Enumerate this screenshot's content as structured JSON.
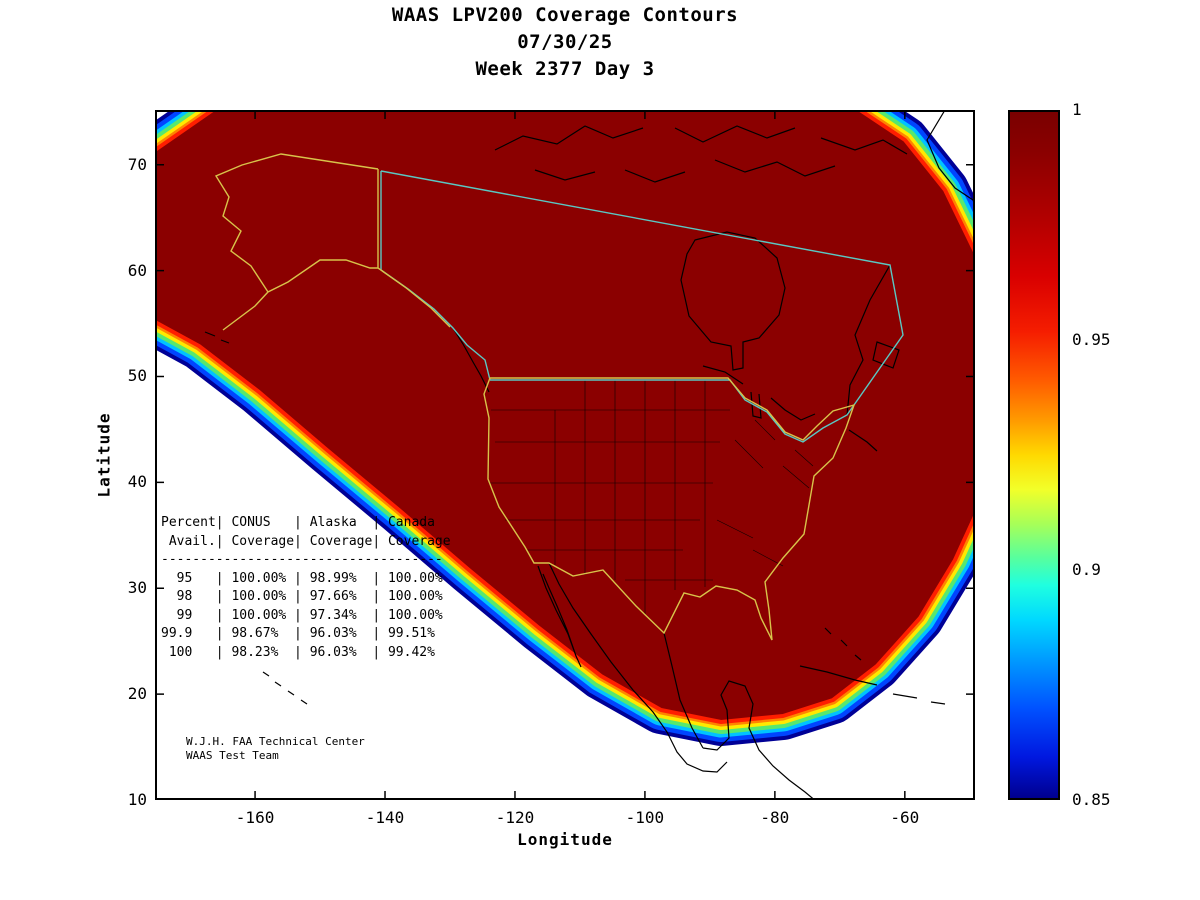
{
  "credit": {
    "line1": "W.J.H. FAA Technical Center",
    "line2": "WAAS Test Team"
  },
  "chart_data": {
    "type": "heatmap",
    "variant": "filled-contour-coverage-map",
    "title": "WAAS LPV200 Coverage Contours",
    "date": "07/30/25",
    "week_label": "Week 2377 Day 3",
    "xlabel": "Longitude",
    "ylabel": "Latitude",
    "xlim": [
      -175,
      -49
    ],
    "ylim": [
      10,
      75
    ],
    "x_ticks": [
      -160,
      -140,
      -120,
      -100,
      -80,
      -60
    ],
    "y_ticks": [
      70,
      60,
      50,
      40,
      30,
      20,
      10
    ],
    "grid": false,
    "colorbar": {
      "min": 0.85,
      "max": 1,
      "ticks": [
        1,
        0.95,
        0.9,
        0.85
      ],
      "colormap": "jet",
      "position": "right"
    },
    "region": "North America (CONUS, Alaska, Canada, Mexico)",
    "value_description": "LPV200 coverage availability fraction: ~1.0 (dark red) over CONUS/Canada/Alaska interior, falling through jet colormap bands to 0.85 at the outer fringe of the service volume",
    "availability_table": {
      "header_rows": [
        [
          "Percent",
          "CONUS",
          "Alaska",
          "Canada"
        ],
        [
          "Avail.",
          "Coverage",
          "Coverage",
          "Coverage"
        ]
      ],
      "rows": [
        [
          "95",
          "100.00%",
          "98.99%",
          "100.00%"
        ],
        [
          "98",
          "100.00%",
          "97.66%",
          "100.00%"
        ],
        [
          "99",
          "100.00%",
          "97.34%",
          "100.00%"
        ],
        [
          "99.9",
          "98.67%",
          "96.03%",
          "99.51%"
        ],
        [
          "100",
          "98.23%",
          "96.03%",
          "99.42%"
        ]
      ]
    }
  }
}
